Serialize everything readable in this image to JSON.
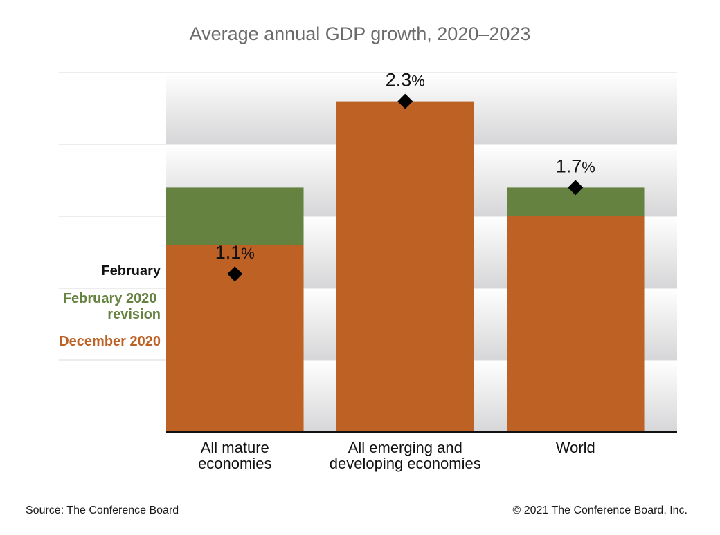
{
  "chart_data": {
    "type": "bar",
    "title": "Average annual GDP growth, 2020–2023",
    "categories": [
      [
        "All mature",
        "economies"
      ],
      [
        "All emerging and",
        "developing economies"
      ],
      [
        "World"
      ]
    ],
    "series": [
      {
        "name": "December 2020",
        "values": [
          1.3,
          2.3,
          1.5
        ],
        "color": "#bd6125"
      },
      {
        "name": "February 2020 revision",
        "values": [
          0.4,
          0.0,
          0.2
        ],
        "color": "#668241"
      },
      {
        "name": "February",
        "values": [
          1.1,
          2.3,
          1.7
        ],
        "color": "#000000",
        "marker": "diamond"
      }
    ],
    "data_labels": [
      "1.1",
      "2.3",
      "1.7"
    ],
    "data_label_unit": "%",
    "ylim": [
      0,
      2.5
    ],
    "grid": true,
    "legend_placement": "left"
  },
  "footer": {
    "source": "Source: The Conference Board",
    "copyright": "© 2021 The Conference Board, Inc."
  }
}
